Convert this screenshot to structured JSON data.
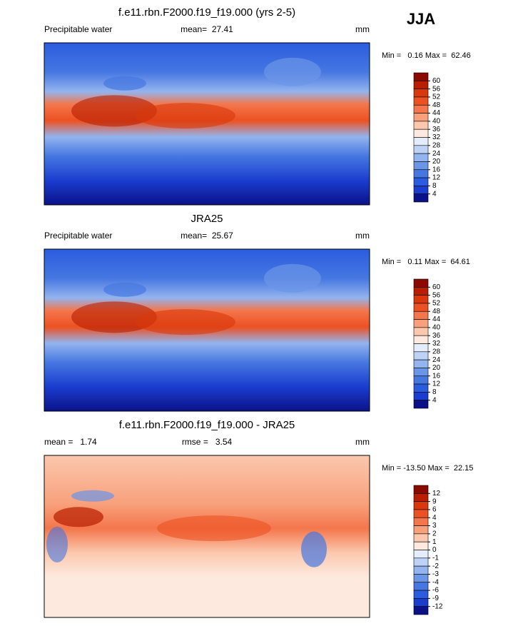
{
  "header": {
    "season": "JJA"
  },
  "panels": [
    {
      "title": "f.e11.rbn.F2000.f19_f19.000 (yrs 2-5)",
      "left": "Precipitable water",
      "center": "mean=  27.41",
      "right": "mm",
      "minmax": "Min =   0.16 Max =  62.46",
      "colorbar": {
        "levels": [
          60,
          56,
          52,
          48,
          44,
          40,
          36,
          32,
          28,
          24,
          20,
          16,
          12,
          8,
          4
        ],
        "colors": [
          "#8b0a00",
          "#b81e00",
          "#d8380c",
          "#ec5122",
          "#f4764c",
          "#f8a07c",
          "#fbc8ad",
          "#fde9de",
          "#e3edfb",
          "#bdd3f5",
          "#93b4ee",
          "#6b95e7",
          "#4677e1",
          "#2b5ce0",
          "#1a3dcf",
          "#0b1288"
        ]
      }
    },
    {
      "title": "JRA25",
      "left": "Precipitable water",
      "center": "mean=  25.67",
      "right": "mm",
      "minmax": "Min =   0.11 Max =  64.61",
      "colorbar": {
        "levels": [
          60,
          56,
          52,
          48,
          44,
          40,
          36,
          32,
          28,
          24,
          20,
          16,
          12,
          8,
          4
        ],
        "colors": [
          "#8b0a00",
          "#b81e00",
          "#d8380c",
          "#ec5122",
          "#f4764c",
          "#f8a07c",
          "#fbc8ad",
          "#fde9de",
          "#e3edfb",
          "#bdd3f5",
          "#93b4ee",
          "#6b95e7",
          "#4677e1",
          "#2b5ce0",
          "#1a3dcf",
          "#0b1288"
        ]
      }
    },
    {
      "title": "f.e11.rbn.F2000.f19_f19.000 - JRA25",
      "left": "mean =   1.74",
      "center": "rmse =   3.54",
      "right": "mm",
      "minmax": "Min = -13.50 Max =  22.15",
      "colorbar": {
        "levels": [
          12,
          9,
          6,
          4,
          3,
          2,
          1,
          0,
          -1,
          -2,
          -3,
          -4,
          -6,
          -9,
          -12
        ],
        "colors": [
          "#8b0a00",
          "#b81e00",
          "#d8380c",
          "#ec5122",
          "#f4764c",
          "#f8a07c",
          "#fbc8ad",
          "#fde9de",
          "#e3edfb",
          "#bdd3f5",
          "#93b4ee",
          "#6b95e7",
          "#4677e1",
          "#2b5ce0",
          "#1a3dcf",
          "#0b1288"
        ]
      }
    }
  ]
}
